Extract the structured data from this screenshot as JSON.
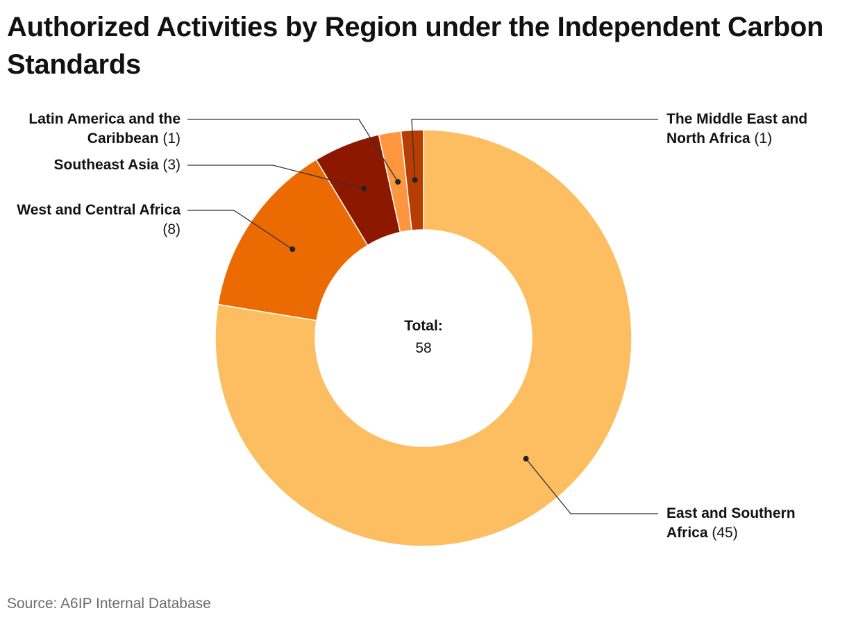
{
  "chart_data": {
    "type": "pie",
    "variant": "donut",
    "title": "Authorized Activities by Region under the Independent Carbon Standards",
    "source": "Source: A6IP Internal Database",
    "total_label": "Total:",
    "total_value": "58",
    "slices": [
      {
        "name": "East and Southern Africa",
        "value": 45,
        "value_text": "(45)",
        "color": "#FDBE62"
      },
      {
        "name": "West and Central Africa",
        "value": 8,
        "value_text": "(8)",
        "color": "#EB6A02"
      },
      {
        "name": "Southeast Asia",
        "value": 3,
        "value_text": "(3)",
        "color": "#8C1800"
      },
      {
        "name": "Latin America and the Caribbean",
        "value": 1,
        "value_text": "(1)",
        "color": "#FD963E"
      },
      {
        "name": "The Middle East and North Africa",
        "value": 1,
        "value_text": "(1)",
        "color": "#B83D02"
      }
    ]
  }
}
